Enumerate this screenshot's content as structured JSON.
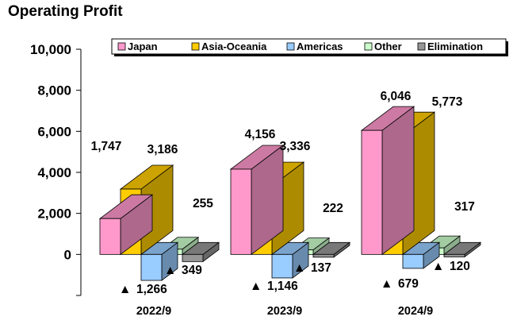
{
  "chart_data": {
    "type": "bar",
    "title": "Operating Profit",
    "categories": [
      "2022/9",
      "2023/9",
      "2024/9"
    ],
    "ylim": [
      -2000,
      10000
    ],
    "y_ticks": [
      "10,000",
      "8,000",
      "6,000",
      "4,000",
      "2,000",
      "0"
    ],
    "legend_position": "top-right",
    "negative_marker": "▲",
    "series": [
      {
        "name": "Japan",
        "color": "#ff99cc",
        "values": [
          1747,
          4156,
          6046
        ],
        "labels": [
          "1,747",
          "4,156",
          "6,046"
        ]
      },
      {
        "name": "Asia-Oceania",
        "color": "#ffcc00",
        "values": [
          3186,
          3336,
          5773
        ],
        "labels": [
          "3,186",
          "3,336",
          "5,773"
        ]
      },
      {
        "name": "Americas",
        "color": "#99ccff",
        "values": [
          -1266,
          -1146,
          -679
        ],
        "labels": [
          "1,266",
          "1,146",
          "679"
        ]
      },
      {
        "name": "Other",
        "color": "#ccffcc",
        "values": [
          255,
          222,
          317
        ],
        "labels": [
          "255",
          "222",
          "317"
        ]
      },
      {
        "name": "Elimination",
        "color": "#969696",
        "values": [
          -349,
          -137,
          -120
        ],
        "labels": [
          "349",
          "137",
          "120"
        ]
      }
    ]
  }
}
